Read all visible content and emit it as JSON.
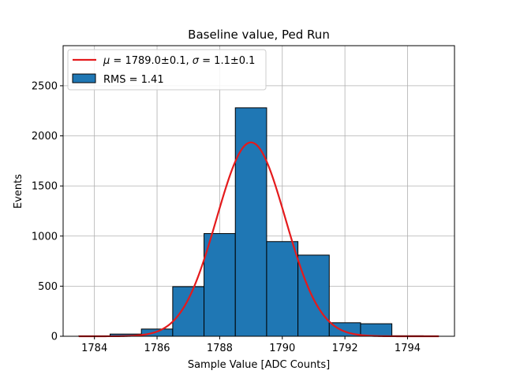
{
  "chart_data": {
    "type": "bar",
    "title": "Baseline value, Ped Run",
    "xlabel": "Sample Value [ADC Counts]",
    "ylabel": "Events",
    "xlim": [
      1783,
      1795.5
    ],
    "ylim": [
      0,
      2900
    ],
    "x_ticks": [
      1784,
      1786,
      1788,
      1790,
      1792,
      1794
    ],
    "y_ticks": [
      0,
      500,
      1000,
      1500,
      2000,
      2500
    ],
    "grid": true,
    "legend_position": "top-left",
    "bar_color": "#1f77b4",
    "fit_color": "#e41a1c",
    "bins": [
      {
        "left": 1783.5,
        "right": 1784.5,
        "count": 3
      },
      {
        "left": 1784.5,
        "right": 1785.5,
        "count": 22
      },
      {
        "left": 1785.5,
        "right": 1786.5,
        "count": 72
      },
      {
        "left": 1786.5,
        "right": 1787.5,
        "count": 495
      },
      {
        "left": 1787.5,
        "right": 1788.5,
        "count": 1025
      },
      {
        "left": 1788.5,
        "right": 1789.5,
        "count": 2280
      },
      {
        "left": 1789.5,
        "right": 1790.5,
        "count": 945
      },
      {
        "left": 1790.5,
        "right": 1791.5,
        "count": 810
      },
      {
        "left": 1791.5,
        "right": 1792.5,
        "count": 135
      },
      {
        "left": 1792.5,
        "right": 1793.5,
        "count": 125
      },
      {
        "left": 1793.5,
        "right": 1794.5,
        "count": 5
      }
    ],
    "fit": {
      "mu": 1789.0,
      "sigma": 1.1,
      "amplitude": 1935,
      "x_range": [
        1783.5,
        1795
      ]
    },
    "legend": [
      {
        "kind": "line",
        "prefix_mu": "μ",
        "text_mid": " = 1789.0±0.1, ",
        "prefix_sigma": "σ",
        "text_end": " = 1.1±0.1"
      },
      {
        "kind": "bar",
        "text": "RMS = 1.41"
      }
    ]
  }
}
